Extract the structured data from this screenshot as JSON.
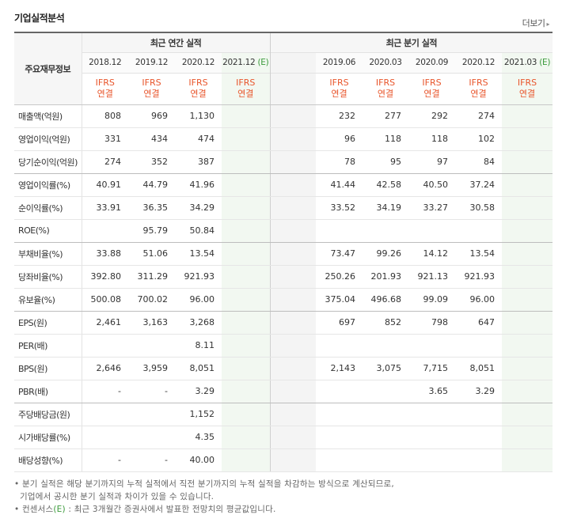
{
  "title": "기업실적분석",
  "more": "더보기",
  "header": {
    "label": "주요재무정보",
    "annual_group": "최근 연간 실적",
    "quarter_group": "최근 분기 실적",
    "annual_cols": [
      "2018.12",
      "2019.12",
      "2020.12",
      "2021.12"
    ],
    "annual_est_mark": "(E)",
    "quarter_cols": [
      "2019.06",
      "2020.03",
      "2020.09",
      "2020.12",
      "2021.03"
    ],
    "quarter_est_mark": "(E)",
    "ifrs": "IFRS",
    "consol": "연결"
  },
  "rows": [
    {
      "label": "매출액(억원)",
      "a": [
        "808",
        "969",
        "1,130",
        ""
      ],
      "q": [
        "232",
        "277",
        "292",
        "274",
        ""
      ]
    },
    {
      "label": "영업이익(억원)",
      "a": [
        "331",
        "434",
        "474",
        ""
      ],
      "q": [
        "96",
        "118",
        "118",
        "102",
        ""
      ]
    },
    {
      "label": "당기순이익(억원)",
      "a": [
        "274",
        "352",
        "387",
        ""
      ],
      "q": [
        "78",
        "95",
        "97",
        "84",
        ""
      ]
    },
    {
      "label": "영업이익률(%)",
      "a": [
        "40.91",
        "44.79",
        "41.96",
        ""
      ],
      "q": [
        "41.44",
        "42.58",
        "40.50",
        "37.24",
        ""
      ]
    },
    {
      "label": "순이익률(%)",
      "a": [
        "33.91",
        "36.35",
        "34.29",
        ""
      ],
      "q": [
        "33.52",
        "34.19",
        "33.27",
        "30.58",
        ""
      ]
    },
    {
      "label": "ROE(%)",
      "a": [
        "",
        "95.79",
        "50.84",
        ""
      ],
      "q": [
        "",
        "",
        "",
        "",
        ""
      ]
    },
    {
      "label": "부채비율(%)",
      "a": [
        "33.88",
        "51.06",
        "13.54",
        ""
      ],
      "q": [
        "73.47",
        "99.26",
        "14.12",
        "13.54",
        ""
      ]
    },
    {
      "label": "당좌비율(%)",
      "a": [
        "392.80",
        "311.29",
        "921.93",
        ""
      ],
      "q": [
        "250.26",
        "201.93",
        "921.13",
        "921.93",
        ""
      ]
    },
    {
      "label": "유보율(%)",
      "a": [
        "500.08",
        "700.02",
        "96.00",
        ""
      ],
      "q": [
        "375.04",
        "496.68",
        "99.09",
        "96.00",
        ""
      ]
    },
    {
      "label": "EPS(원)",
      "a": [
        "2,461",
        "3,163",
        "3,268",
        ""
      ],
      "q": [
        "697",
        "852",
        "798",
        "647",
        ""
      ]
    },
    {
      "label": "PER(배)",
      "a": [
        "",
        "",
        "8.11",
        ""
      ],
      "q": [
        "",
        "",
        "",
        "",
        ""
      ]
    },
    {
      "label": "BPS(원)",
      "a": [
        "2,646",
        "3,959",
        "8,051",
        ""
      ],
      "q": [
        "2,143",
        "3,075",
        "7,715",
        "8,051",
        ""
      ]
    },
    {
      "label": "PBR(배)",
      "a": [
        "-",
        "-",
        "3.29",
        ""
      ],
      "q": [
        "",
        "",
        "3.65",
        "3.29",
        ""
      ]
    },
    {
      "label": "주당배당금(원)",
      "a": [
        "",
        "",
        "1,152",
        ""
      ],
      "q": [
        "",
        "",
        "",
        "",
        ""
      ]
    },
    {
      "label": "시가배당률(%)",
      "a": [
        "",
        "",
        "4.35",
        ""
      ],
      "q": [
        "",
        "",
        "",
        "",
        ""
      ]
    },
    {
      "label": "배당성향(%)",
      "a": [
        "-",
        "-",
        "40.00",
        ""
      ],
      "q": [
        "",
        "",
        "",
        "",
        ""
      ]
    }
  ],
  "notes": {
    "line1": "분기 실적은 해당 분기까지의 누적 실적에서 직전 분기까지의 누적 실적을 차감하는 방식으로 계산되므로,",
    "line2": "기업에서 공시한 분기 실적과 차이가 있을 수 있습니다.",
    "line3_prefix": "컨센서스",
    "line3_mark": "(E)",
    "line3_rest": " : 최근 3개월간 증권사에서 발표한 전망치의 평균값입니다."
  }
}
